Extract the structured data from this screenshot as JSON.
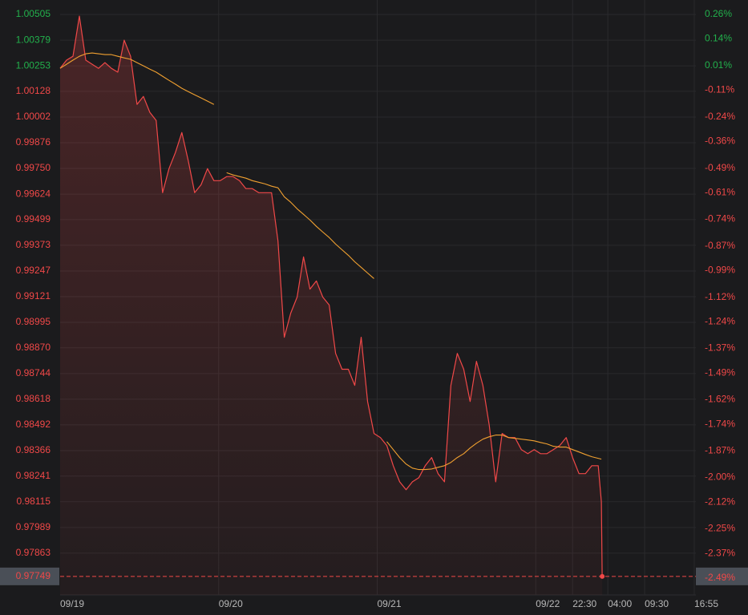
{
  "chart_data": {
    "type": "line",
    "x": [
      0,
      4,
      8,
      12,
      16,
      20,
      24,
      28,
      32,
      36,
      40,
      44,
      48,
      52,
      56,
      60,
      64,
      68,
      72,
      76,
      80,
      84,
      88,
      92,
      96,
      100,
      104,
      108,
      112,
      116,
      120,
      124,
      128,
      132,
      136,
      140,
      144,
      148,
      152,
      156,
      160,
      164,
      168,
      172,
      176,
      180,
      184,
      188,
      192,
      196,
      200,
      204,
      208,
      212,
      216,
      220,
      224,
      228,
      232,
      236,
      240,
      244,
      248,
      252,
      256,
      260,
      264,
      268,
      272,
      276,
      280,
      284,
      288,
      292,
      296,
      300,
      304,
      308,
      312,
      316,
      320,
      324,
      328,
      332,
      336,
      338,
      338.5
    ],
    "series": [
      {
        "color": "#f04848",
        "values": [
          1.00241,
          1.00281,
          1.003,
          1.00497,
          1.00281,
          1.00261,
          1.00241,
          1.00269,
          1.00241,
          1.00222,
          1.00379,
          1.003,
          1.00064,
          1.00103,
          1.00025,
          0.99985,
          0.99631,
          0.99749,
          0.99828,
          0.99926,
          0.99788,
          0.99631,
          0.9967,
          0.99749,
          0.9969,
          0.9969,
          0.9971,
          0.9971,
          0.9969,
          0.99651,
          0.99651,
          0.99631,
          0.99631,
          0.99631,
          0.99395,
          0.98922,
          0.9904,
          0.99119,
          0.99316,
          0.99158,
          0.99198,
          0.99119,
          0.9908,
          0.98843,
          0.98765,
          0.98765,
          0.98686,
          0.98922,
          0.98607,
          0.9845,
          0.9843,
          0.98391,
          0.98292,
          0.98213,
          0.98174,
          0.98213,
          0.98233,
          0.98292,
          0.98332,
          0.98253,
          0.98213,
          0.98686,
          0.98843,
          0.98765,
          0.98607,
          0.98804,
          0.98686,
          0.98489,
          0.98213,
          0.9845,
          0.9843,
          0.9843,
          0.98371,
          0.98351,
          0.98371,
          0.98351,
          0.98351,
          0.98371,
          0.98391,
          0.9843,
          0.98332,
          0.98253,
          0.98253,
          0.98292,
          0.98292,
          0.98115,
          0.97749
        ]
      },
      {
        "color": "#f0a030",
        "values": [
          1.00241,
          1.00261,
          1.00281,
          1.003,
          1.00312,
          1.00316,
          1.00312,
          1.00308,
          1.00308,
          1.003,
          1.00292,
          1.00285,
          1.00269,
          1.00253,
          1.00237,
          1.00222,
          1.00202,
          1.00182,
          1.00163,
          1.00143,
          1.00127,
          1.00111,
          1.00096,
          1.0008,
          1.00064,
          null,
          0.99729,
          0.99718,
          0.9971,
          0.99702,
          0.9969,
          0.99682,
          0.99674,
          0.99663,
          0.99655,
          0.99611,
          0.99584,
          0.99552,
          0.99525,
          0.99497,
          0.99466,
          0.99438,
          0.99411,
          0.99379,
          0.99351,
          0.99324,
          0.99292,
          0.99265,
          0.99237,
          0.9921,
          null,
          0.9841,
          0.98371,
          0.98332,
          0.983,
          0.9828,
          0.98273,
          0.98273,
          0.98276,
          0.98284,
          0.98292,
          0.98308,
          0.98332,
          0.98351,
          0.98379,
          0.98402,
          0.98422,
          0.98434,
          0.98442,
          0.98442,
          0.9843,
          0.98426,
          0.98422,
          0.98418,
          0.98414,
          0.98406,
          0.98399,
          0.98387,
          0.98383,
          0.98383,
          0.98371,
          0.98359,
          0.98347,
          0.98336,
          0.98328,
          0.98324,
          null
        ]
      }
    ],
    "xlim": [
      0,
      397
    ],
    "xticks": [
      {
        "value": 0,
        "label": "09/19"
      },
      {
        "value": 99,
        "label": "09/20"
      },
      {
        "value": 198,
        "label": "09/21"
      },
      {
        "value": 297,
        "label": "09/22"
      },
      {
        "value": 320,
        "label": "22:30"
      },
      {
        "value": 342,
        "label": "04:00"
      },
      {
        "value": 365,
        "label": "09:30"
      },
      {
        "value": 396,
        "label": "16:55"
      }
    ],
    "ylim": [
      0.97658,
      1.00576
    ],
    "yticks": [
      1.00505,
      1.00379,
      1.00253,
      1.00128,
      1.00002,
      0.99876,
      {
        "value": 0.9975,
        "label": "0.99750"
      },
      0.99624,
      0.99499,
      0.99373,
      0.99247,
      0.99121,
      0.98995,
      {
        "value": 0.9887,
        "label": "0.98870"
      },
      0.98744,
      0.98618,
      0.98492,
      0.98366,
      0.98241,
      0.98115,
      0.97989,
      0.97863
    ],
    "y2lim": [
      -2.573,
      0.33
    ],
    "y2ticks": [
      {
        "value": 0.26,
        "label": "0.26%"
      },
      {
        "value": 0.14,
        "label": "0.14%"
      },
      {
        "value": 0.01,
        "label": "0.01%"
      },
      {
        "value": -0.11,
        "label": "-0.11%"
      },
      {
        "value": -0.24,
        "label": "-0.24%"
      },
      {
        "value": -0.36,
        "label": "-0.36%"
      },
      {
        "value": -0.49,
        "label": "-0.49%"
      },
      {
        "value": -0.61,
        "label": "-0.61%"
      },
      {
        "value": -0.74,
        "label": "-0.74%"
      },
      {
        "value": -0.87,
        "label": "-0.87%"
      },
      {
        "value": -0.99,
        "label": "-0.99%"
      },
      {
        "value": -1.12,
        "label": "-1.12%"
      },
      {
        "value": -1.24,
        "label": "-1.24%"
      },
      {
        "value": -1.37,
        "label": "-1.37%"
      },
      {
        "value": -1.49,
        "label": "-1.49%"
      },
      {
        "value": -1.62,
        "label": "-1.62%"
      },
      {
        "value": -1.74,
        "label": "-1.74%"
      },
      {
        "value": -1.87,
        "label": "-1.87%"
      },
      {
        "value": -2.0,
        "label": "-2.00%"
      },
      {
        "value": -2.12,
        "label": "-2.12%"
      },
      {
        "value": -2.25,
        "label": "-2.25%"
      },
      {
        "value": -2.37,
        "label": "-2.37%"
      }
    ],
    "last_price": 0.97749,
    "last_change": {
      "value": -2.49,
      "label": "-2.49%"
    },
    "grid": true,
    "up_color": "#22b14c",
    "down_color": "#f04848"
  }
}
